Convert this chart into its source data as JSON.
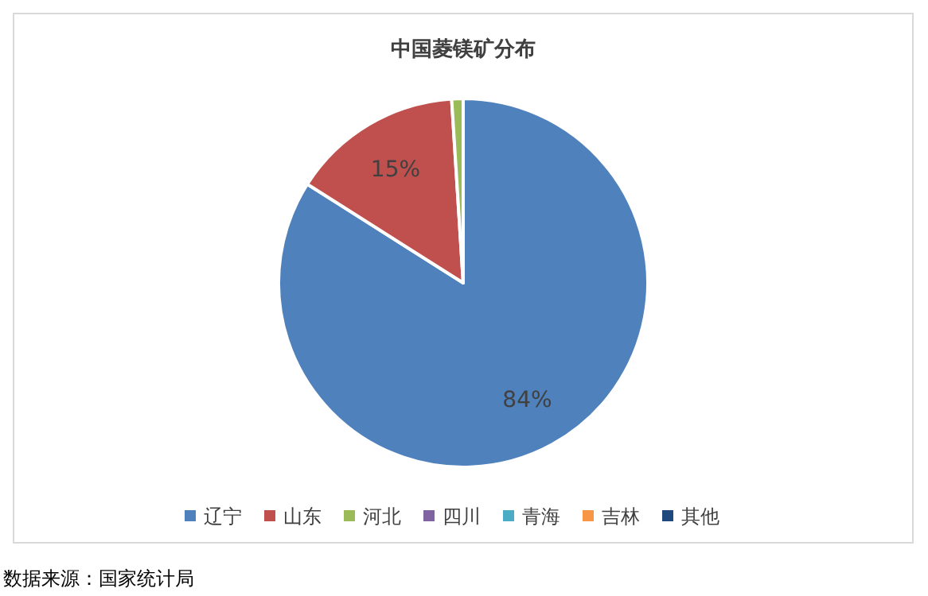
{
  "chart_data": {
    "type": "pie",
    "title": "中国菱镁矿分布",
    "categories": [
      "辽宁",
      "山东",
      "河北",
      "四川",
      "青海",
      "吉林",
      "其他"
    ],
    "values": [
      84,
      15,
      1,
      0,
      0,
      0,
      0
    ],
    "value_labels": [
      "84%",
      "15%",
      null,
      null,
      null,
      null,
      null
    ],
    "colors": [
      "#4f81bd",
      "#c0504d",
      "#9bbb59",
      "#8064a2",
      "#4bacc6",
      "#f79646",
      "#1f497d"
    ],
    "legend": "bottom",
    "annotations": [
      "数据来源：国家统计局"
    ]
  }
}
